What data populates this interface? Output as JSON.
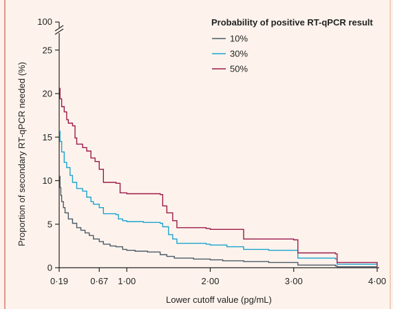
{
  "chart_data": {
    "type": "line",
    "title": "",
    "xlabel": "Lower cutoff value (pg/mL)",
    "ylabel": "Proportion of secondary RT-qPCR needed (%)",
    "xlim": [
      0.19,
      4.0
    ],
    "ylim": [
      0,
      27
    ],
    "y_axis_break": true,
    "y_break_top_label": "100",
    "x_ticks": [
      {
        "value": 0.19,
        "label": "0·19"
      },
      {
        "value": 0.67,
        "label": "0·67"
      },
      {
        "value": 1.0,
        "label": "1·00"
      },
      {
        "value": 2.0,
        "label": "2·00"
      },
      {
        "value": 3.0,
        "label": "3·00"
      },
      {
        "value": 4.0,
        "label": "4·00"
      }
    ],
    "y_ticks": [
      {
        "value": 0,
        "label": "0"
      },
      {
        "value": 5,
        "label": "5"
      },
      {
        "value": 10,
        "label": "10"
      },
      {
        "value": 15,
        "label": "15"
      },
      {
        "value": 20,
        "label": "20"
      },
      {
        "value": 25,
        "label": "25"
      }
    ],
    "grid": false,
    "legend": {
      "title": "Probability of positive RT-qPCR result",
      "position": "top-right"
    },
    "series": [
      {
        "name": "10%",
        "color": "#4a5a66",
        "points": [
          [
            0.19,
            10.5
          ],
          [
            0.2,
            9.2
          ],
          [
            0.21,
            8.3
          ],
          [
            0.22,
            7.6
          ],
          [
            0.24,
            6.9
          ],
          [
            0.26,
            6.3
          ],
          [
            0.3,
            5.6
          ],
          [
            0.35,
            5.1
          ],
          [
            0.4,
            4.6
          ],
          [
            0.45,
            4.3
          ],
          [
            0.5,
            4.0
          ],
          [
            0.55,
            3.7
          ],
          [
            0.6,
            3.3
          ],
          [
            0.67,
            3.0
          ],
          [
            0.72,
            2.7
          ],
          [
            0.8,
            2.5
          ],
          [
            0.87,
            2.4
          ],
          [
            0.95,
            2.1
          ],
          [
            1.0,
            2.0
          ],
          [
            1.1,
            1.9
          ],
          [
            1.25,
            1.8
          ],
          [
            1.4,
            1.5
          ],
          [
            1.48,
            1.3
          ],
          [
            1.57,
            1.1
          ],
          [
            1.8,
            1.0
          ],
          [
            2.0,
            0.9
          ],
          [
            2.15,
            0.8
          ],
          [
            2.4,
            0.7
          ],
          [
            2.7,
            0.6
          ],
          [
            3.0,
            0.6
          ],
          [
            3.05,
            0.3
          ],
          [
            3.5,
            0.2
          ],
          [
            3.52,
            0.1
          ],
          [
            4.0,
            0.1
          ]
        ]
      },
      {
        "name": "30%",
        "color": "#1aa3cf",
        "points": [
          [
            0.19,
            15.7
          ],
          [
            0.2,
            14.5
          ],
          [
            0.22,
            13.3
          ],
          [
            0.25,
            12.1
          ],
          [
            0.28,
            11.5
          ],
          [
            0.32,
            10.6
          ],
          [
            0.35,
            9.8
          ],
          [
            0.4,
            9.1
          ],
          [
            0.47,
            8.8
          ],
          [
            0.52,
            8.1
          ],
          [
            0.57,
            7.6
          ],
          [
            0.6,
            7.3
          ],
          [
            0.67,
            6.9
          ],
          [
            0.72,
            6.2
          ],
          [
            0.87,
            6.1
          ],
          [
            0.9,
            5.6
          ],
          [
            0.95,
            5.4
          ],
          [
            1.0,
            5.3
          ],
          [
            1.2,
            5.2
          ],
          [
            1.4,
            5.1
          ],
          [
            1.43,
            4.7
          ],
          [
            1.5,
            3.8
          ],
          [
            1.55,
            3.3
          ],
          [
            1.6,
            2.8
          ],
          [
            1.95,
            2.7
          ],
          [
            2.0,
            2.6
          ],
          [
            2.2,
            2.4
          ],
          [
            2.4,
            2.1
          ],
          [
            2.7,
            2.0
          ],
          [
            3.0,
            2.0
          ],
          [
            3.05,
            1.1
          ],
          [
            3.5,
            1.0
          ],
          [
            3.52,
            0.4
          ],
          [
            4.0,
            0.4
          ]
        ]
      },
      {
        "name": "50%",
        "color": "#9c1848",
        "points": [
          [
            0.19,
            20.6
          ],
          [
            0.2,
            19.4
          ],
          [
            0.22,
            18.5
          ],
          [
            0.25,
            17.9
          ],
          [
            0.28,
            17.0
          ],
          [
            0.3,
            16.6
          ],
          [
            0.35,
            16.3
          ],
          [
            0.38,
            14.9
          ],
          [
            0.4,
            14.2
          ],
          [
            0.47,
            13.8
          ],
          [
            0.52,
            13.4
          ],
          [
            0.57,
            12.6
          ],
          [
            0.62,
            12.2
          ],
          [
            0.67,
            11.3
          ],
          [
            0.72,
            9.8
          ],
          [
            0.87,
            9.7
          ],
          [
            0.92,
            8.6
          ],
          [
            1.0,
            8.5
          ],
          [
            1.4,
            8.4
          ],
          [
            1.43,
            7.1
          ],
          [
            1.48,
            6.3
          ],
          [
            1.55,
            5.4
          ],
          [
            1.6,
            4.6
          ],
          [
            1.95,
            4.5
          ],
          [
            2.0,
            4.4
          ],
          [
            2.4,
            3.3
          ],
          [
            3.0,
            3.2
          ],
          [
            3.05,
            1.7
          ],
          [
            3.5,
            1.6
          ],
          [
            3.52,
            0.6
          ],
          [
            3.95,
            0.6
          ],
          [
            4.0,
            0.1
          ]
        ]
      }
    ]
  }
}
